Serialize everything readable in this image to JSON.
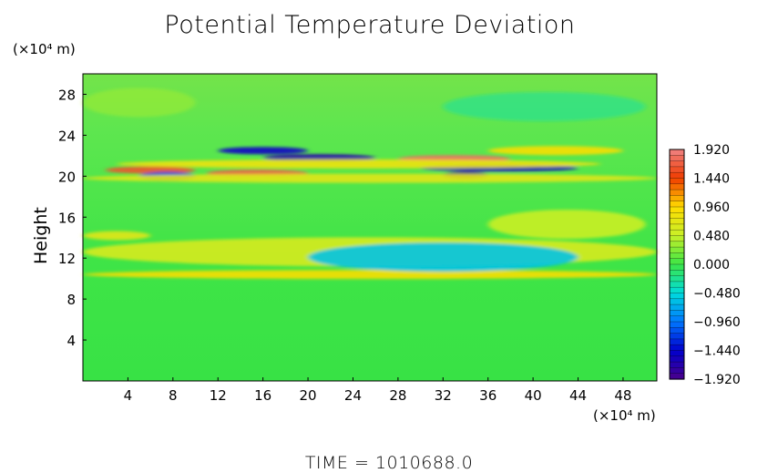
{
  "chart_data": {
    "type": "heatmap",
    "title": "Potential Temperature Deviation",
    "ylabel": "Height",
    "y_unit": "(×10⁴ m)",
    "x_unit": "(×10⁴ m)",
    "xlim": [
      0,
      51
    ],
    "ylim": [
      0,
      30
    ],
    "x_ticks": [
      "4",
      "8",
      "12",
      "16",
      "20",
      "24",
      "28",
      "32",
      "36",
      "40",
      "44",
      "48"
    ],
    "x_tick_values": [
      4,
      8,
      12,
      16,
      20,
      24,
      28,
      32,
      36,
      40,
      44,
      48
    ],
    "y_ticks": [
      "4",
      "8",
      "12",
      "16",
      "20",
      "24",
      "28"
    ],
    "y_tick_values": [
      4,
      8,
      12,
      16,
      20,
      24,
      28
    ],
    "colorbar": {
      "labels": [
        "1.920",
        "1.440",
        "0.960",
        "0.480",
        "0.000",
        "−0.480",
        "−0.960",
        "−1.440",
        "−1.920"
      ],
      "values": [
        1.92,
        1.44,
        0.96,
        0.48,
        0.0,
        -0.48,
        -0.96,
        -1.44,
        -1.92
      ],
      "range": [
        -1.92,
        1.92
      ]
    },
    "time_label": "TIME = 1010688.0",
    "features": [
      {
        "x": [
          2,
          10
        ],
        "y": 20.6,
        "value": 1.6
      },
      {
        "x": [
          5,
          10
        ],
        "y": 20.0,
        "value": -1.2
      },
      {
        "x": [
          12,
          20
        ],
        "y": 22.5,
        "value": -1.5
      },
      {
        "x": [
          11,
          20
        ],
        "y": 20.3,
        "value": 1.7
      },
      {
        "x": [
          16,
          26
        ],
        "y": 21.8,
        "value": -1.7
      },
      {
        "x": [
          28,
          38
        ],
        "y": 21.7,
        "value": 1.8
      },
      {
        "x": [
          30,
          44
        ],
        "y": 20.8,
        "value": -1.6
      },
      {
        "x": [
          32,
          36
        ],
        "y": 20.1,
        "value": -1.9
      },
      {
        "x": [
          36,
          48
        ],
        "y": 22.5,
        "value": 0.9
      },
      {
        "x": [
          3,
          46
        ],
        "y": 21.2,
        "value": 0.8
      },
      {
        "x": [
          0,
          51
        ],
        "y": 19.8,
        "value": 0.7
      },
      {
        "x": [
          0,
          51
        ],
        "y": 12.6,
        "value": 0.6
      },
      {
        "x": [
          0,
          51
        ],
        "y": 10.4,
        "value": 0.9
      },
      {
        "x": [
          20,
          44
        ],
        "y": 12.1,
        "value": -0.6
      },
      {
        "x": [
          0,
          10
        ],
        "y": 27.2,
        "value": 0.35
      },
      {
        "x": [
          32,
          50
        ],
        "y": 26.8,
        "value": -0.3
      },
      {
        "x": [
          0,
          6
        ],
        "y": 14.2,
        "value": 0.7
      },
      {
        "x": [
          36,
          50
        ],
        "y": 15.3,
        "value": 0.5
      }
    ]
  }
}
